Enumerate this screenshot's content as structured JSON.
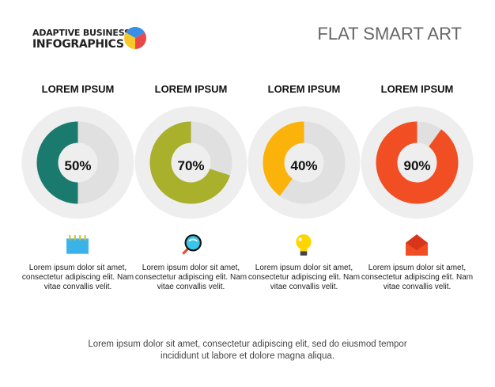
{
  "header": {
    "logo_line1": "ADAPTIVE BUSINESS",
    "logo_line2": "INFOGRAPHICS",
    "title": "FLAT SMART ART"
  },
  "items": [
    {
      "title": "LOREM IPSUM",
      "value": 50,
      "label": "50%",
      "color": "#1a7a6e",
      "icon": "notepad-icon",
      "text": "Lorem ipsum dolor sit amet, consectetur adipiscing elit. Nam vitae convallis velit."
    },
    {
      "title": "LOREM IPSUM",
      "value": 70,
      "label": "70%",
      "color": "#a8b02c",
      "icon": "magnifier-icon",
      "text": "Lorem ipsum dolor sit amet, consectetur adipiscing elit. Nam vitae convallis velit."
    },
    {
      "title": "LOREM IPSUM",
      "value": 40,
      "label": "40%",
      "color": "#fbb20a",
      "icon": "lightbulb-icon",
      "text": "Lorem ipsum dolor sit amet, consectetur adipiscing elit. Nam vitae convallis velit."
    },
    {
      "title": "LOREM IPSUM",
      "value": 90,
      "label": "90%",
      "color": "#f24e23",
      "icon": "envelope-icon",
      "text": "Lorem ipsum dolor sit amet, consectetur adipiscing elit. Nam vitae convallis velit."
    }
  ],
  "footer": {
    "line1": "Lorem ipsum dolor sit amet, consectetur adipiscing elit, sed do eiusmod tempor",
    "line2": "incididunt ut labore et dolore magna aliqua."
  }
}
